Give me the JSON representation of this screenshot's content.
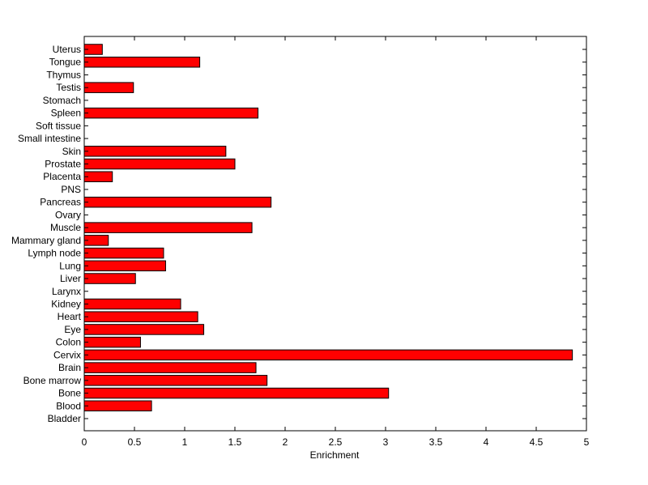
{
  "chart_data": {
    "type": "bar",
    "orientation": "horizontal",
    "title": "",
    "xlabel": "Enrichment",
    "ylabel": "",
    "xlim": [
      0,
      5
    ],
    "xticks": [
      0,
      0.5,
      1,
      1.5,
      2,
      2.5,
      3,
      3.5,
      4,
      4.5,
      5
    ],
    "grid": false,
    "bar_color": "#ff0000",
    "categories": [
      "Bladder",
      "Blood",
      "Bone",
      "Bone marrow",
      "Brain",
      "Cervix",
      "Colon",
      "Eye",
      "Heart",
      "Kidney",
      "Larynx",
      "Liver",
      "Lung",
      "Lymph node",
      "Mammary gland",
      "Muscle",
      "Ovary",
      "Pancreas",
      "PNS",
      "Placenta",
      "Prostate",
      "Skin",
      "Small intestine",
      "Soft tissue",
      "Spleen",
      "Stomach",
      "Testis",
      "Thymus",
      "Tongue",
      "Uterus"
    ],
    "values": [
      0,
      0.67,
      3.03,
      1.82,
      1.71,
      4.86,
      0.56,
      1.19,
      1.13,
      0.96,
      0,
      0.51,
      0.81,
      0.79,
      0.24,
      1.67,
      0,
      1.86,
      0,
      0.28,
      1.5,
      1.41,
      0,
      0,
      1.73,
      0,
      0.49,
      0,
      1.15,
      0.18
    ]
  }
}
